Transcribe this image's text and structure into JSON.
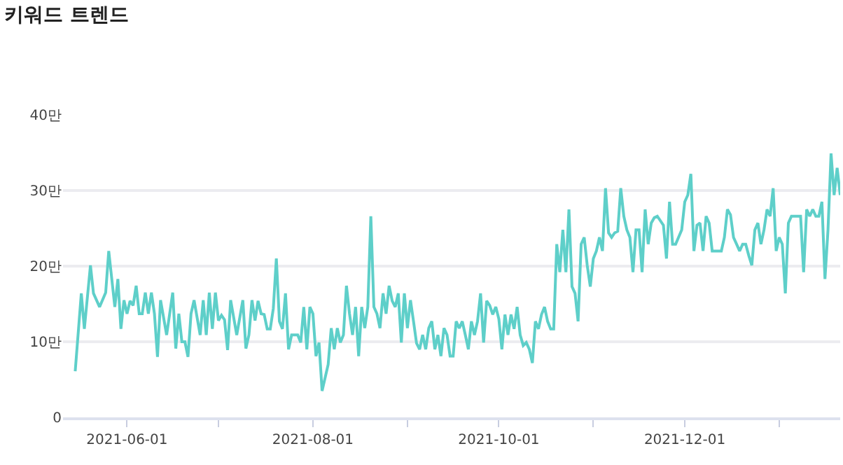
{
  "chart_data": {
    "type": "line",
    "title": "키워드 트렌드",
    "x": [
      "2021-05-15",
      "2021-05-17",
      "2021-05-18",
      "2021-05-20",
      "2021-05-21",
      "2021-05-23",
      "2021-05-25",
      "2021-05-26",
      "2021-05-28",
      "2021-05-29",
      "2021-05-30",
      "2021-05-31",
      "2021-06-01",
      "2021-06-02",
      "2021-06-03",
      "2021-06-04",
      "2021-06-05",
      "2021-06-06",
      "2021-06-07",
      "2021-06-08",
      "2021-06-09",
      "2021-06-10",
      "2021-06-11",
      "2021-06-12",
      "2021-06-14",
      "2021-06-16",
      "2021-06-17",
      "2021-06-18",
      "2021-06-19",
      "2021-06-20",
      "2021-06-21",
      "2021-06-22",
      "2021-06-23",
      "2021-06-25",
      "2021-06-26",
      "2021-06-27",
      "2021-06-28",
      "2021-06-29",
      "2021-06-30",
      "2021-07-01",
      "2021-07-02",
      "2021-07-03",
      "2021-07-04",
      "2021-07-05",
      "2021-07-07",
      "2021-07-09",
      "2021-07-10",
      "2021-07-11",
      "2021-07-12",
      "2021-07-13",
      "2021-07-14",
      "2021-07-15",
      "2021-07-16",
      "2021-07-17",
      "2021-07-18",
      "2021-07-19",
      "2021-07-20",
      "2021-07-21",
      "2021-07-22",
      "2021-07-23",
      "2021-07-24",
      "2021-07-25",
      "2021-07-27",
      "2021-07-28",
      "2021-07-29",
      "2021-07-30",
      "2021-07-31",
      "2021-08-01",
      "2021-08-02",
      "2021-08-03",
      "2021-08-04",
      "2021-08-06",
      "2021-08-07",
      "2021-08-08",
      "2021-08-09",
      "2021-08-10",
      "2021-08-11",
      "2021-08-12",
      "2021-08-13",
      "2021-08-14",
      "2021-08-15",
      "2021-08-16",
      "2021-08-17",
      "2021-08-18",
      "2021-08-19",
      "2021-08-20",
      "2021-08-21",
      "2021-08-22",
      "2021-08-23",
      "2021-08-24",
      "2021-08-25",
      "2021-08-26",
      "2021-08-27",
      "2021-08-28",
      "2021-08-29",
      "2021-08-30",
      "2021-08-31",
      "2021-09-01",
      "2021-09-02",
      "2021-09-03",
      "2021-09-04",
      "2021-09-05",
      "2021-09-06",
      "2021-09-07",
      "2021-09-08",
      "2021-09-09",
      "2021-09-10",
      "2021-09-11",
      "2021-09-12",
      "2021-09-13",
      "2021-09-14",
      "2021-09-15",
      "2021-09-16",
      "2021-09-17",
      "2021-09-18",
      "2021-09-19",
      "2021-09-20",
      "2021-09-21",
      "2021-09-22",
      "2021-09-23",
      "2021-09-24",
      "2021-09-25",
      "2021-09-26",
      "2021-09-27",
      "2021-09-28",
      "2021-09-29",
      "2021-09-30",
      "2021-10-01",
      "2021-10-02",
      "2021-10-03",
      "2021-10-04",
      "2021-10-05",
      "2021-10-06",
      "2021-10-07",
      "2021-10-08",
      "2021-10-09",
      "2021-10-10",
      "2021-10-11",
      "2021-10-12",
      "2021-10-13",
      "2021-10-14",
      "2021-10-15",
      "2021-10-16",
      "2021-10-17",
      "2021-10-18",
      "2021-10-19",
      "2021-10-20",
      "2021-10-21",
      "2021-10-22",
      "2021-10-23",
      "2021-10-24",
      "2021-10-25",
      "2021-10-26",
      "2021-10-27",
      "2021-10-28",
      "2021-10-29",
      "2021-10-30",
      "2021-10-31",
      "2021-11-01",
      "2021-11-02",
      "2021-11-03",
      "2021-11-04",
      "2021-11-05",
      "2021-11-06",
      "2021-11-07",
      "2021-11-08",
      "2021-11-09",
      "2021-11-10",
      "2021-11-11",
      "2021-11-12",
      "2021-11-13",
      "2021-11-14",
      "2021-11-15",
      "2021-11-16",
      "2021-11-17",
      "2021-11-18",
      "2021-11-19",
      "2021-11-20",
      "2021-11-21",
      "2021-11-22",
      "2021-11-24",
      "2021-11-25",
      "2021-11-26",
      "2021-11-27",
      "2021-11-28",
      "2021-11-30",
      "2021-12-01",
      "2021-12-02",
      "2021-12-03",
      "2021-12-04",
      "2021-12-05",
      "2021-12-06",
      "2021-12-07",
      "2021-12-08",
      "2021-12-09",
      "2021-12-10",
      "2021-12-13",
      "2021-12-14",
      "2021-12-15",
      "2021-12-16",
      "2021-12-17",
      "2021-12-18",
      "2021-12-19",
      "2021-12-20",
      "2021-12-21",
      "2021-12-22",
      "2021-12-23",
      "2021-12-24",
      "2021-12-25",
      "2021-12-26",
      "2021-12-27",
      "2021-12-28",
      "2021-12-29",
      "2021-12-30",
      "2021-12-31",
      "2022-01-01",
      "2022-01-02",
      "2022-01-03",
      "2022-01-04",
      "2022-01-05",
      "2022-01-08",
      "2022-01-09",
      "2022-01-10",
      "2022-01-11",
      "2022-01-12",
      "2022-01-13",
      "2022-01-14",
      "2022-01-15",
      "2022-01-16",
      "2022-01-17",
      "2022-01-18",
      "2022-01-19",
      "2022-01-20",
      "2022-01-21"
    ],
    "series": [
      {
        "color": "#5ecfc9",
        "values": [
          6.1,
          16.4,
          11.7,
          20.1,
          16.4,
          14.6,
          16.5,
          22.0,
          14.6,
          18.3,
          11.7,
          15.5,
          13.7,
          15.4,
          14.8,
          17.4,
          13.7,
          13.7,
          16.5,
          13.7,
          16.5,
          13.7,
          8.0,
          15.5,
          10.9,
          16.5,
          9.1,
          13.7,
          10.0,
          10.0,
          8.0,
          13.7,
          15.5,
          10.9,
          15.5,
          10.9,
          16.5,
          11.7,
          16.5,
          12.8,
          13.5,
          12.9,
          8.9,
          15.5,
          10.9,
          15.5,
          9.1,
          10.9,
          15.5,
          12.8,
          15.4,
          13.7,
          13.6,
          11.7,
          11.7,
          14.4,
          21.0,
          12.7,
          11.7,
          16.4,
          9.0,
          10.9,
          10.9,
          9.9,
          14.6,
          9.0,
          14.6,
          13.7,
          8.1,
          9.9,
          3.5,
          7.0,
          11.8,
          9.0,
          11.8,
          9.9,
          10.9,
          17.4,
          13.7,
          10.9,
          14.6,
          8.1,
          14.6,
          11.8,
          14.6,
          26.6,
          14.6,
          13.7,
          11.8,
          16.4,
          13.7,
          17.4,
          15.4,
          14.6,
          16.4,
          9.9,
          16.4,
          11.8,
          15.5,
          12.7,
          9.8,
          9.0,
          10.9,
          9.0,
          11.8,
          12.7,
          9.0,
          10.9,
          8.1,
          11.8,
          10.9,
          8.1,
          8.1,
          12.7,
          11.8,
          12.7,
          10.9,
          9.0,
          12.7,
          10.9,
          12.7,
          16.4,
          9.9,
          15.4,
          14.8,
          13.6,
          14.6,
          13.0,
          9.0,
          13.6,
          10.9,
          13.6,
          11.7,
          14.6,
          10.9,
          9.5,
          9.9,
          9.0,
          7.2,
          12.7,
          11.7,
          13.6,
          14.6,
          12.7,
          11.7,
          11.7,
          22.9,
          19.2,
          24.8,
          19.2,
          27.5,
          17.3,
          16.4,
          12.7,
          22.9,
          23.8,
          20.1,
          17.3,
          21.0,
          22.0,
          23.8,
          22.0,
          30.3,
          24.4,
          23.8,
          24.4,
          24.6,
          30.3,
          26.6,
          24.8,
          23.8,
          19.2,
          24.8,
          24.8,
          19.2,
          27.5,
          22.9,
          25.7,
          26.4,
          26.6,
          25.4,
          21.0,
          28.5,
          22.9,
          22.9,
          24.8,
          28.5,
          29.4,
          32.2,
          22.0,
          25.4,
          25.7,
          22.0,
          26.6,
          25.7,
          22.0,
          22.0,
          23.8,
          27.5,
          26.8,
          23.8,
          22.9,
          22.0,
          22.9,
          22.9,
          21.4,
          20.1,
          24.8,
          25.7,
          22.9,
          24.8,
          27.5,
          26.6,
          30.3,
          22.0,
          23.8,
          22.9,
          16.4,
          25.7,
          26.6,
          26.6,
          19.2,
          27.5,
          26.6,
          27.5,
          26.6,
          26.6,
          28.5,
          18.3,
          24.8,
          34.9,
          29.4,
          33.0,
          29.4
        ]
      }
    ],
    "xlim": [
      "2021-05-11",
      "2022-01-21"
    ],
    "xticks": [
      {
        "value": "2021-06-01",
        "label": "2021-06-01"
      },
      {
        "value": "2021-07-01",
        "label": null
      },
      {
        "value": "2021-08-01",
        "label": "2021-08-01"
      },
      {
        "value": "2021-09-01",
        "label": null
      },
      {
        "value": "2021-10-01",
        "label": "2021-10-01"
      },
      {
        "value": "2021-11-01",
        "label": null
      },
      {
        "value": "2021-12-01",
        "label": "2021-12-01"
      },
      {
        "value": "2022-01-01",
        "label": null
      }
    ],
    "ylim": [
      0,
      40
    ],
    "yticks": [
      0,
      {
        "value": 10,
        "label": "10만"
      },
      {
        "value": 20,
        "label": "20만"
      },
      {
        "value": 30,
        "label": "30만"
      },
      {
        "value": 40,
        "label": "40만"
      }
    ],
    "grid": "y",
    "marker": "none",
    "line_style": "solid"
  }
}
